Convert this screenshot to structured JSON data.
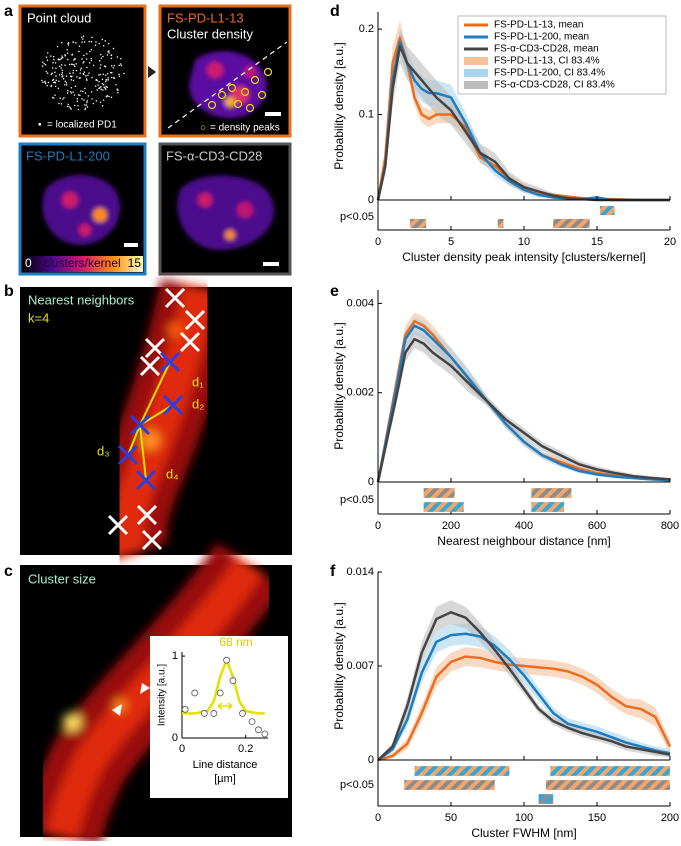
{
  "panel_labels": [
    "a",
    "b",
    "c",
    "d",
    "e",
    "f"
  ],
  "panel_a": {
    "point_cloud": {
      "title": "Point cloud",
      "symbol": "▪",
      "legend": "= localized PD1"
    },
    "cluster_density": {
      "name": "FS-PD-L1-13",
      "title": "Cluster density",
      "symbol": "○",
      "legend": "= density peaks"
    },
    "pd_l1_200": {
      "name": "FS-PD-L1-200"
    },
    "cd3_cd28": {
      "name": "FS-α-CD3-CD28"
    },
    "colorbar": {
      "range": [
        0,
        15
      ],
      "label": "clusters/kernel"
    }
  },
  "panel_b": {
    "title": "Nearest neighbors",
    "k": "k=4",
    "distances": [
      "d₁",
      "d₂",
      "d₃",
      "d₄"
    ]
  },
  "panel_c": {
    "title": "Cluster size"
  },
  "chart_data": [
    {
      "type": "line",
      "xlabel": "Cluster density peak intensity [clusters/kernel]",
      "ylabel": "Probability density [a.u.]",
      "x": [
        0,
        0.5,
        1,
        1.5,
        2,
        2.5,
        3,
        3.5,
        4,
        5,
        6,
        7,
        8,
        9,
        10,
        11,
        12,
        13,
        14,
        15,
        16,
        18,
        20
      ],
      "xlim": [
        0,
        20
      ],
      "xticks": [
        0,
        5,
        10,
        15,
        20
      ],
      "ylim": [
        0,
        0.22
      ],
      "yticks": [
        0,
        0.1,
        0.2
      ],
      "legend": "upper right",
      "series": [
        {
          "name": "FS-PD-L1-13, mean",
          "color": "#ee6c1e",
          "values": [
            0,
            0.05,
            0.16,
            0.19,
            0.16,
            0.12,
            0.1,
            0.095,
            0.1,
            0.1,
            0.085,
            0.05,
            0.04,
            0.025,
            0.015,
            0.008,
            0.006,
            0.004,
            0.002,
            0.001,
            0.001,
            0,
            0
          ]
        },
        {
          "name": "FS-PD-L1-200, mean",
          "color": "#1f7cc0",
          "values": [
            0,
            0.04,
            0.14,
            0.185,
            0.16,
            0.14,
            0.13,
            0.125,
            0.125,
            0.12,
            0.09,
            0.055,
            0.035,
            0.022,
            0.012,
            0.006,
            0.003,
            0.002,
            0.001,
            0.003,
            0,
            0,
            0
          ]
        },
        {
          "name": "FS-α-CD3-CD28, mean",
          "color": "#444444",
          "values": [
            0,
            0.04,
            0.13,
            0.18,
            0.16,
            0.15,
            0.14,
            0.13,
            0.12,
            0.105,
            0.08,
            0.055,
            0.045,
            0.025,
            0.015,
            0.01,
            0.005,
            0.002,
            0.001,
            0,
            0,
            0,
            0
          ]
        }
      ],
      "bands": [
        {
          "name": "FS-PD-L1-13, CI 83.4%",
          "color": "#f7bf9a",
          "lower": [
            0,
            0.04,
            0.14,
            0.175,
            0.15,
            0.11,
            0.09,
            0.085,
            0.09,
            0.09,
            0.075,
            0.043,
            0.034,
            0.02,
            0.011,
            0.005,
            0.004,
            0.002,
            0.001,
            0,
            0,
            0,
            0
          ],
          "upper": [
            0,
            0.06,
            0.18,
            0.21,
            0.175,
            0.13,
            0.11,
            0.105,
            0.11,
            0.11,
            0.095,
            0.057,
            0.046,
            0.03,
            0.019,
            0.011,
            0.008,
            0.006,
            0.003,
            0.002,
            0.002,
            0.001,
            0
          ]
        },
        {
          "name": "FS-PD-L1-200, CI 83.4%",
          "color": "#a9d6ee",
          "lower": [
            0,
            0.03,
            0.125,
            0.17,
            0.145,
            0.125,
            0.115,
            0.11,
            0.11,
            0.105,
            0.078,
            0.046,
            0.028,
            0.017,
            0.008,
            0.003,
            0.001,
            0,
            0,
            0.001,
            0,
            0,
            0
          ],
          "upper": [
            0,
            0.05,
            0.155,
            0.2,
            0.175,
            0.155,
            0.145,
            0.14,
            0.14,
            0.135,
            0.102,
            0.064,
            0.042,
            0.027,
            0.016,
            0.009,
            0.005,
            0.004,
            0.002,
            0.005,
            0.001,
            0,
            0
          ]
        },
        {
          "name": "FS-α-CD3-CD28, CI 83.4%",
          "color": "#bdbdbd",
          "lower": [
            0,
            0.03,
            0.11,
            0.16,
            0.14,
            0.13,
            0.12,
            0.11,
            0.1,
            0.088,
            0.066,
            0.044,
            0.035,
            0.017,
            0.009,
            0.005,
            0.002,
            0,
            0,
            0,
            0,
            0,
            0
          ],
          "upper": [
            0,
            0.05,
            0.15,
            0.2,
            0.18,
            0.17,
            0.16,
            0.15,
            0.14,
            0.122,
            0.094,
            0.066,
            0.055,
            0.033,
            0.021,
            0.015,
            0.008,
            0.004,
            0.002,
            0.001,
            0,
            0,
            0
          ]
        }
      ],
      "significance": {
        "label": "p<0.05",
        "rows": [
          {
            "colors": [
              "#35a7d6",
              "#f4a66a"
            ],
            "intervals": [
              [
                15.2,
                16.2
              ]
            ]
          },
          {
            "colors": [
              "#f4a66a",
              "#8c8c8c"
            ],
            "intervals": [
              [
                2.2,
                3.3
              ],
              [
                8.2,
                8.6
              ],
              [
                12,
                14.5
              ]
            ]
          }
        ]
      }
    },
    {
      "type": "line",
      "xlabel": "Nearest neighbour distance [nm]",
      "ylabel": "Probability density [a.u.]",
      "x": [
        0,
        50,
        75,
        100,
        125,
        150,
        200,
        250,
        300,
        350,
        400,
        450,
        500,
        550,
        600,
        650,
        700,
        750,
        800
      ],
      "xlim": [
        0,
        800
      ],
      "xticks": [
        0,
        200,
        400,
        600,
        800
      ],
      "ylim": [
        0,
        0.0043
      ],
      "yticks": [
        0,
        0.002,
        0.004
      ],
      "series": [
        {
          "color": "#ee6c1e",
          "values": [
            0,
            0.0022,
            0.0033,
            0.0036,
            0.0035,
            0.0033,
            0.0028,
            0.0023,
            0.0018,
            0.0013,
            0.0009,
            0.0006,
            0.00045,
            0.0003,
            0.0002,
            0.00015,
            0.0001,
            8e-05,
            5e-05
          ]
        },
        {
          "color": "#1f7cc0",
          "values": [
            0,
            0.0021,
            0.0032,
            0.0035,
            0.0034,
            0.0032,
            0.0028,
            0.0023,
            0.0018,
            0.0013,
            0.0009,
            0.0006,
            0.0004,
            0.00025,
            0.00017,
            0.00012,
            9e-05,
            6e-05,
            4e-05
          ]
        },
        {
          "color": "#444444",
          "values": [
            0,
            0.0019,
            0.0029,
            0.0032,
            0.0031,
            0.0029,
            0.0026,
            0.0022,
            0.0018,
            0.0014,
            0.0011,
            0.0008,
            0.0006,
            0.0004,
            0.00028,
            0.0002,
            0.00013,
            9e-05,
            6e-05
          ]
        }
      ],
      "bands": [
        {
          "color": "#f7bf9a",
          "lower": [
            0,
            0.002,
            0.0031,
            0.0034,
            0.0033,
            0.0031,
            0.0026,
            0.0021,
            0.0017,
            0.0012,
            0.0008,
            0.00052,
            0.00038,
            0.00024,
            0.00015,
            0.0001,
            6e-05,
            4e-05,
            2e-05
          ],
          "upper": [
            0,
            0.0024,
            0.0035,
            0.0038,
            0.0037,
            0.0035,
            0.003,
            0.0025,
            0.0019,
            0.0014,
            0.001,
            0.00068,
            0.00052,
            0.00036,
            0.00025,
            0.0002,
            0.00014,
            0.00012,
            8e-05
          ]
        },
        {
          "color": "#a9d6ee",
          "lower": [
            0,
            0.0019,
            0.003,
            0.0033,
            0.0032,
            0.003,
            0.0026,
            0.0021,
            0.0017,
            0.0012,
            0.0008,
            0.00052,
            0.00033,
            0.0002,
            0.00012,
            8e-05,
            5e-05,
            3e-05,
            1e-05
          ],
          "upper": [
            0,
            0.0023,
            0.0034,
            0.0037,
            0.0036,
            0.0034,
            0.003,
            0.0025,
            0.0019,
            0.0014,
            0.001,
            0.00068,
            0.00047,
            0.0003,
            0.00022,
            0.00016,
            0.00013,
            9e-05,
            7e-05
          ]
        },
        {
          "color": "#bdbdbd",
          "lower": [
            0,
            0.0017,
            0.0027,
            0.003,
            0.0029,
            0.0027,
            0.0024,
            0.002,
            0.0017,
            0.0013,
            0.001,
            0.0007,
            0.0005,
            0.00032,
            0.00021,
            0.00014,
            8e-05,
            5e-05,
            3e-05
          ],
          "upper": [
            0,
            0.0021,
            0.0031,
            0.0034,
            0.0033,
            0.0031,
            0.0028,
            0.0024,
            0.0019,
            0.0015,
            0.0012,
            0.0009,
            0.0007,
            0.00048,
            0.00035,
            0.00026,
            0.00018,
            0.00013,
            9e-05
          ]
        }
      ],
      "significance": {
        "label": "p<0.05",
        "rows": [
          {
            "colors": [
              "#f4a66a",
              "#8c8c8c"
            ],
            "intervals": [
              [
                125,
                210
              ],
              [
                420,
                530
              ]
            ]
          },
          {
            "colors": [
              "#35a7d6",
              "#f4a66a"
            ],
            "intervals": [
              [
                125,
                235
              ],
              [
                420,
                510
              ]
            ]
          }
        ]
      }
    },
    {
      "type": "line",
      "xlabel": "Cluster FWHM [nm]",
      "ylabel": "Probability density [a.u.]",
      "x": [
        0,
        10,
        20,
        30,
        40,
        50,
        60,
        70,
        80,
        90,
        100,
        110,
        120,
        130,
        140,
        150,
        160,
        170,
        180,
        190,
        200
      ],
      "xlim": [
        0,
        200
      ],
      "xticks": [
        0,
        50,
        100,
        150,
        200
      ],
      "ylim": [
        0,
        0.014
      ],
      "yticks": [
        0,
        0.007,
        0.014
      ],
      "series": [
        {
          "color": "#ee6c1e",
          "values": [
            0,
            0.0003,
            0.0012,
            0.0035,
            0.0062,
            0.0073,
            0.0077,
            0.0076,
            0.0073,
            0.0071,
            0.007,
            0.0069,
            0.0068,
            0.0066,
            0.0062,
            0.0056,
            0.0047,
            0.004,
            0.0038,
            0.0032,
            0.001
          ]
        },
        {
          "color": "#1f7cc0",
          "values": [
            0,
            0.0008,
            0.003,
            0.0065,
            0.0088,
            0.0093,
            0.0094,
            0.0092,
            0.0085,
            0.0075,
            0.0063,
            0.0049,
            0.0035,
            0.0027,
            0.0024,
            0.0021,
            0.0017,
            0.0013,
            0.001,
            0.0007,
            0.0005
          ]
        },
        {
          "color": "#444444",
          "values": [
            0,
            0.001,
            0.004,
            0.008,
            0.0105,
            0.011,
            0.0106,
            0.0095,
            0.0082,
            0.0068,
            0.0053,
            0.0038,
            0.0029,
            0.0024,
            0.002,
            0.0017,
            0.0014,
            0.001,
            0.0008,
            0.0006,
            0.0004
          ]
        }
      ],
      "bands": [
        {
          "color": "#f7bf9a",
          "lower": [
            0,
            0.0001,
            0.0008,
            0.0029,
            0.0055,
            0.0066,
            0.007,
            0.0069,
            0.0067,
            0.0065,
            0.0064,
            0.0063,
            0.0062,
            0.006,
            0.0056,
            0.005,
            0.0041,
            0.0034,
            0.0031,
            0.0025,
            0.0005
          ],
          "upper": [
            0,
            0.0005,
            0.0016,
            0.0041,
            0.0069,
            0.008,
            0.0084,
            0.0083,
            0.0079,
            0.0077,
            0.0076,
            0.0075,
            0.0074,
            0.0072,
            0.0068,
            0.0062,
            0.0053,
            0.0046,
            0.0045,
            0.0039,
            0.0015
          ]
        },
        {
          "color": "#a9d6ee",
          "lower": [
            0,
            0.0005,
            0.0025,
            0.0058,
            0.008,
            0.0085,
            0.0086,
            0.0084,
            0.0078,
            0.0068,
            0.0057,
            0.0044,
            0.0031,
            0.0023,
            0.002,
            0.0017,
            0.0013,
            0.0009,
            0.0007,
            0.0004,
            0.0002
          ],
          "upper": [
            0,
            0.0011,
            0.0035,
            0.0072,
            0.0096,
            0.0101,
            0.0102,
            0.01,
            0.0092,
            0.0082,
            0.0069,
            0.0054,
            0.0039,
            0.0031,
            0.0028,
            0.0025,
            0.0021,
            0.0017,
            0.0013,
            0.001,
            0.0008
          ]
        },
        {
          "color": "#bdbdbd",
          "lower": [
            0,
            0.0007,
            0.0034,
            0.0072,
            0.0096,
            0.0101,
            0.0098,
            0.0088,
            0.0076,
            0.0063,
            0.0049,
            0.0035,
            0.0026,
            0.0021,
            0.0017,
            0.0014,
            0.0011,
            0.0007,
            0.0005,
            0.0003,
            0.0002
          ],
          "upper": [
            0,
            0.0013,
            0.0046,
            0.0088,
            0.0114,
            0.0119,
            0.0114,
            0.0102,
            0.0088,
            0.0073,
            0.0057,
            0.0041,
            0.0032,
            0.0027,
            0.0023,
            0.002,
            0.0017,
            0.0013,
            0.0011,
            0.0009,
            0.0006
          ]
        }
      ],
      "significance": {
        "label": "p<0.05",
        "rows": [
          {
            "colors": [
              "#35a7d6",
              "#f4a66a"
            ],
            "intervals": [
              [
                25,
                90
              ],
              [
                118,
                200
              ]
            ]
          },
          {
            "colors": [
              "#f4a66a",
              "#8c8c8c"
            ],
            "intervals": [
              [
                18,
                80
              ],
              [
                115,
                200
              ]
            ]
          },
          {
            "colors": [
              "#35a7d6",
              "#8c8c8c"
            ],
            "intervals": [
              [
                110,
                120
              ]
            ]
          }
        ]
      }
    },
    {
      "type": "scatter",
      "xlabel": [
        "Line distance",
        "[µm]"
      ],
      "ylabel": "Intensity [a.u.]",
      "annotation": "68 nm",
      "xlim": [
        0,
        0.27
      ],
      "xticks": [
        0,
        0.2
      ],
      "ylim": [
        0,
        1.05
      ],
      "yticks": [
        0,
        1
      ],
      "points": {
        "color": "#ffffff",
        "x": [
          0.01,
          0.04,
          0.07,
          0.1,
          0.12,
          0.14,
          0.16,
          0.19,
          0.22,
          0.24,
          0.26
        ],
        "y": [
          0.35,
          0.55,
          0.3,
          0.3,
          0.55,
          0.95,
          0.7,
          0.3,
          0.2,
          0.1,
          0.05
        ]
      },
      "fit": {
        "color": "#e6e000",
        "x": [
          0,
          0.04,
          0.08,
          0.1,
          0.12,
          0.14,
          0.16,
          0.18,
          0.2,
          0.24,
          0.26
        ],
        "y": [
          0.3,
          0.3,
          0.33,
          0.45,
          0.75,
          0.95,
          0.75,
          0.45,
          0.33,
          0.3,
          0.3
        ]
      }
    }
  ]
}
